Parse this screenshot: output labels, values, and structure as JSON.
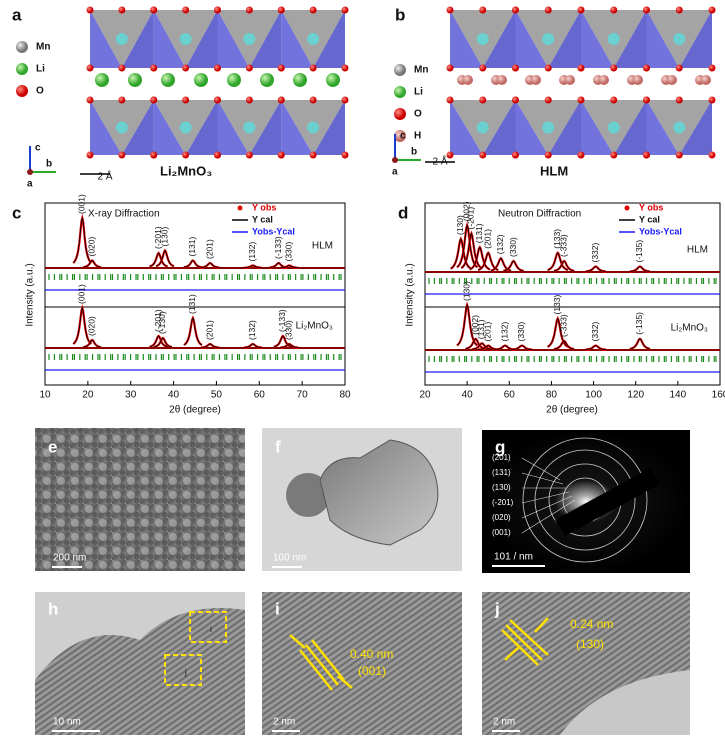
{
  "panels": {
    "a": {
      "label": "a",
      "legend": [
        "Mn",
        "Li",
        "O"
      ],
      "axes": [
        "c",
        "b",
        "a"
      ],
      "scale": "2 Å",
      "formula": "Li₂MnO₃"
    },
    "b": {
      "label": "b",
      "legend": [
        "Mn",
        "Li",
        "O",
        "H"
      ],
      "axes": [
        "c",
        "b",
        "a"
      ],
      "scale": "2 Å",
      "formula": "HLM"
    },
    "c": {
      "label": "c",
      "title": "X-ray Diffraction",
      "ylabel": "Intensity (a.u.)",
      "xlabel": "2θ (degree)",
      "legend": [
        "Y obs",
        "Y cal",
        "Yobs-Ycal"
      ],
      "xlim": [
        10,
        80
      ],
      "xticks": [
        10,
        20,
        30,
        40,
        50,
        60,
        70,
        80
      ],
      "patterns": [
        {
          "name": "HLM",
          "peaks": [
            {
              "label": "(001)",
              "x": 18.7,
              "height": 1.0
            },
            {
              "label": "(020)",
              "x": 21,
              "height": 0.15
            },
            {
              "label": "(-201)",
              "x": 36.5,
              "height": 0.3
            },
            {
              "label": "(130)",
              "x": 38,
              "height": 0.35
            },
            {
              "label": "(131)",
              "x": 44.5,
              "height": 0.15
            },
            {
              "label": "(201)",
              "x": 48.5,
              "height": 0.1
            },
            {
              "label": "(132)",
              "x": 58.5,
              "height": 0.05
            },
            {
              "label": "(-133)",
              "x": 64.5,
              "height": 0.1
            },
            {
              "label": "(330)",
              "x": 67,
              "height": 0.05
            }
          ]
        },
        {
          "name": "Li₂MnO₃",
          "peaks": [
            {
              "label": "(001)",
              "x": 18.7,
              "height": 1.0
            },
            {
              "label": "(020)",
              "x": 21,
              "height": 0.2
            },
            {
              "label": "(-201)",
              "x": 36.5,
              "height": 0.3
            },
            {
              "label": "(-130)",
              "x": 37.5,
              "height": 0.25
            },
            {
              "label": "(131)",
              "x": 44.5,
              "height": 0.75
            },
            {
              "label": "(201)",
              "x": 48.5,
              "height": 0.1
            },
            {
              "label": "(132)",
              "x": 58.5,
              "height": 0.1
            },
            {
              "label": "(-133)",
              "x": 65.5,
              "height": 0.3
            },
            {
              "label": "(330)",
              "x": 67,
              "height": 0.1
            }
          ]
        }
      ]
    },
    "d": {
      "label": "d",
      "title": "Neutron Diffraction",
      "ylabel": "Intensity (a.u.)",
      "xlabel": "2θ (degree)",
      "legend": [
        "Y obs",
        "Y cal",
        "Yobs-Ycal"
      ],
      "xlim": [
        20,
        160
      ],
      "xticks": [
        20,
        40,
        60,
        80,
        100,
        120,
        140,
        160
      ],
      "patterns": [
        {
          "name": "HLM",
          "peaks": [
            {
              "label": "(130)",
              "x": 37,
              "height": 0.6
            },
            {
              "label": "(002)",
              "x": 40,
              "height": 0.85
            },
            {
              "label": "(-201)",
              "x": 42,
              "height": 0.7
            },
            {
              "label": "(131)",
              "x": 46,
              "height": 0.45
            },
            {
              "label": "(201)",
              "x": 50,
              "height": 0.35
            },
            {
              "label": "(132)",
              "x": 56,
              "height": 0.25
            },
            {
              "label": "(330)",
              "x": 62,
              "height": 0.2
            },
            {
              "label": "(133)",
              "x": 83,
              "height": 0.35
            },
            {
              "label": "(-333)",
              "x": 86,
              "height": 0.2
            },
            {
              "label": "(332)",
              "x": 101,
              "height": 0.1
            },
            {
              "label": "(-135)",
              "x": 122,
              "height": 0.1
            }
          ]
        },
        {
          "name": "Li₂MnO₃",
          "peaks": [
            {
              "label": "(130)",
              "x": 40,
              "height": 1.0
            },
            {
              "label": "(002)",
              "x": 44,
              "height": 0.25
            },
            {
              "label": "(131)",
              "x": 47,
              "height": 0.15
            },
            {
              "label": "(201)",
              "x": 50,
              "height": 0.1
            },
            {
              "label": "(132)",
              "x": 58,
              "height": 0.1
            },
            {
              "label": "(330)",
              "x": 66,
              "height": 0.1
            },
            {
              "label": "(133)",
              "x": 83,
              "height": 0.7
            },
            {
              "label": "(-333)",
              "x": 86,
              "height": 0.2
            },
            {
              "label": "(332)",
              "x": 101,
              "height": 0.1
            },
            {
              "label": "(-135)",
              "x": 122,
              "height": 0.25
            }
          ]
        }
      ]
    },
    "e": {
      "label": "e",
      "scale": "200 nm"
    },
    "f": {
      "label": "f",
      "scale": "100 nm"
    },
    "g": {
      "label": "g",
      "rings": [
        "(201)",
        "(131)",
        "(130)",
        "(-201)",
        "(020)",
        "(001)"
      ],
      "scale": "101 / nm"
    },
    "h": {
      "label": "h",
      "boxes": [
        "i",
        "j"
      ],
      "scale": "10 nm"
    },
    "i": {
      "label": "i",
      "spacing": "0.40 nm",
      "plane": "(001)",
      "scale": "2 nm"
    },
    "j": {
      "label": "j",
      "spacing": "0.24 nm",
      "plane": "(130)",
      "scale": "2 nm"
    }
  }
}
